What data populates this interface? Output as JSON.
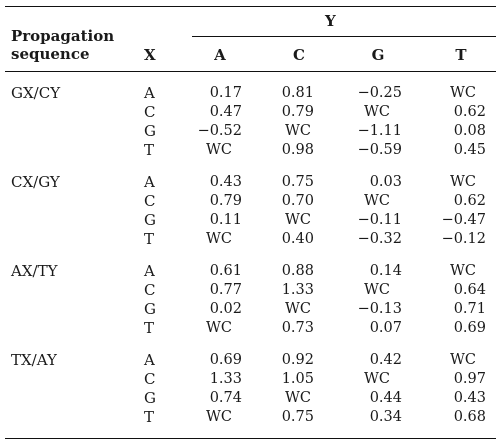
{
  "header": {
    "seq_label_line1": "Propagation",
    "seq_label_line2": "sequence",
    "x_label": "X",
    "y_label": "Y",
    "y_columns": [
      "A",
      "C",
      "G",
      "T"
    ]
  },
  "groups": [
    {
      "label": "GX/CY",
      "rows": [
        {
          "x": "A",
          "values": [
            "0.17",
            "0.81",
            "−0.25",
            "WC"
          ]
        },
        {
          "x": "C",
          "values": [
            "0.47",
            "0.79",
            "WC",
            "0.62"
          ]
        },
        {
          "x": "G",
          "values": [
            "−0.52",
            "WC",
            "−1.11",
            "0.08"
          ]
        },
        {
          "x": "T",
          "values": [
            "WC",
            "0.98",
            "−0.59",
            "0.45"
          ]
        }
      ]
    },
    {
      "label": "CX/GY",
      "rows": [
        {
          "x": "A",
          "values": [
            "0.43",
            "0.75",
            "0.03",
            "WC"
          ]
        },
        {
          "x": "C",
          "values": [
            "0.79",
            "0.70",
            "WC",
            "0.62"
          ]
        },
        {
          "x": "G",
          "values": [
            "0.11",
            "WC",
            "−0.11",
            "−0.47"
          ]
        },
        {
          "x": "T",
          "values": [
            "WC",
            "0.40",
            "−0.32",
            "−0.12"
          ]
        }
      ]
    },
    {
      "label": "AX/TY",
      "rows": [
        {
          "x": "A",
          "values": [
            "0.61",
            "0.88",
            "0.14",
            "WC"
          ]
        },
        {
          "x": "C",
          "values": [
            "0.77",
            "1.33",
            "WC",
            "0.64"
          ]
        },
        {
          "x": "G",
          "values": [
            "0.02",
            "WC",
            "−0.13",
            "0.71"
          ]
        },
        {
          "x": "T",
          "values": [
            "WC",
            "0.73",
            "0.07",
            "0.69"
          ]
        }
      ]
    },
    {
      "label": "TX/AY",
      "rows": [
        {
          "x": "A",
          "values": [
            "0.69",
            "0.92",
            "0.42",
            "WC"
          ]
        },
        {
          "x": "C",
          "values": [
            "1.33",
            "1.05",
            "WC",
            "0.97"
          ]
        },
        {
          "x": "G",
          "values": [
            "0.74",
            "WC",
            "0.44",
            "0.43"
          ]
        },
        {
          "x": "T",
          "values": [
            "WC",
            "0.75",
            "0.34",
            "0.68"
          ]
        }
      ]
    }
  ]
}
